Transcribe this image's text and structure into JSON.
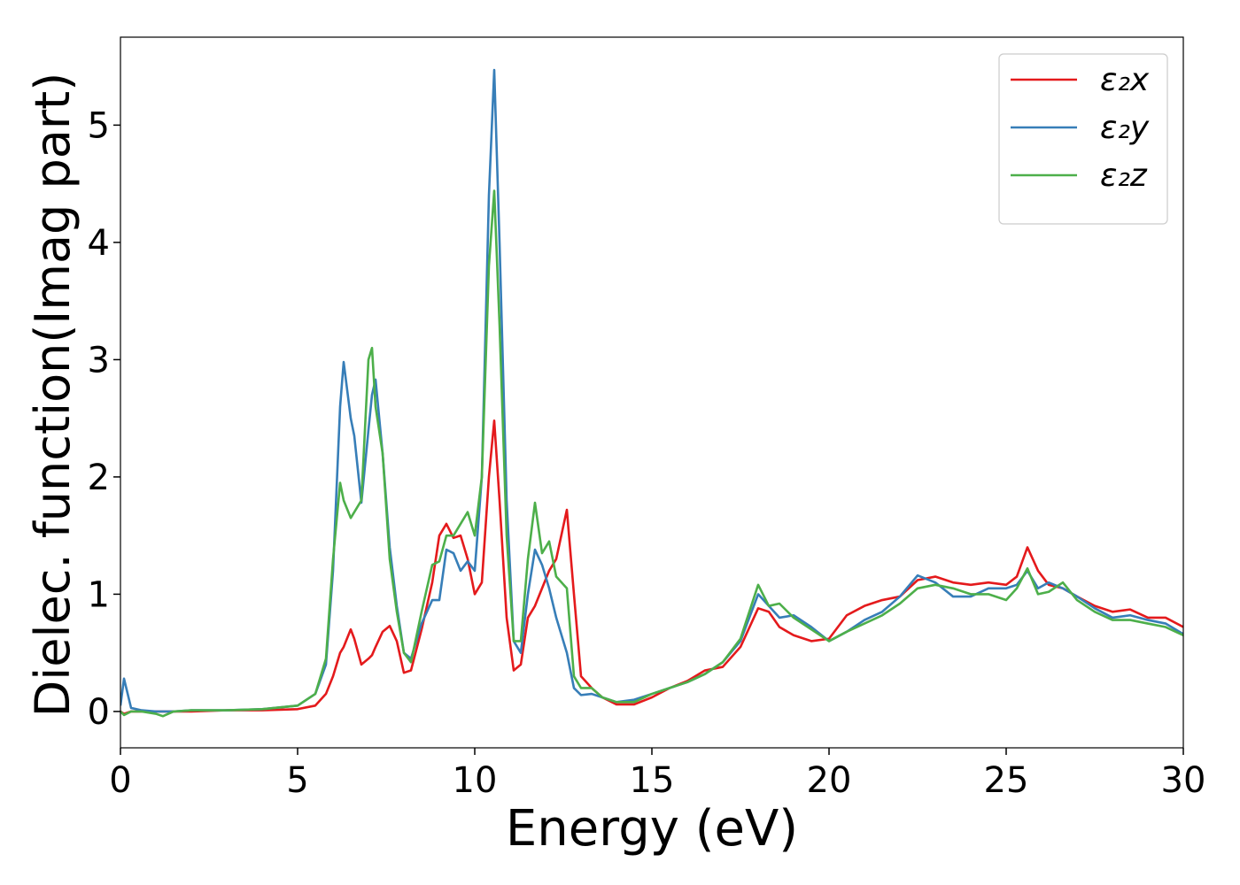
{
  "chart_data": {
    "type": "line",
    "xlabel": "Energy (eV)",
    "ylabel": "Dielec. function(Imag part)",
    "xlim": [
      0,
      30
    ],
    "xticks": [
      0,
      5,
      10,
      15,
      20,
      25,
      30
    ],
    "ylim": [
      -0.31,
      5.75
    ],
    "yticks": [
      0,
      1,
      2,
      3,
      4,
      5
    ],
    "legend": "upper right",
    "x": [
      0,
      0.1,
      0.3,
      0.6,
      1,
      1.2,
      1.5,
      2,
      3,
      4,
      5,
      5.5,
      5.8,
      6,
      6.2,
      6.3,
      6.5,
      6.6,
      6.8,
      7,
      7.1,
      7.2,
      7.4,
      7.6,
      7.8,
      8,
      8.2,
      8.5,
      8.8,
      9,
      9.2,
      9.4,
      9.6,
      9.8,
      10,
      10.2,
      10.4,
      10.55,
      10.7,
      10.9,
      11.1,
      11.3,
      11.5,
      11.7,
      11.9,
      12.1,
      12.3,
      12.6,
      12.8,
      13,
      13.3,
      13.6,
      14,
      14.5,
      15,
      15.5,
      16,
      16.5,
      17,
      17.5,
      18,
      18.3,
      18.6,
      19,
      19.5,
      20,
      20.5,
      21,
      21.5,
      22,
      22.5,
      23,
      23.5,
      24,
      24.5,
      25,
      25.3,
      25.6,
      25.9,
      26.2,
      26.6,
      27,
      27.5,
      28,
      28.5,
      29,
      29.5,
      30
    ],
    "series": [
      {
        "name": "ε₂x",
        "color": "#e41a1c",
        "values": [
          0,
          -0.02,
          0,
          0,
          0,
          0,
          0,
          0,
          0.01,
          0.01,
          0.02,
          0.05,
          0.15,
          0.3,
          0.5,
          0.55,
          0.7,
          0.62,
          0.4,
          0.45,
          0.48,
          0.55,
          0.68,
          0.73,
          0.6,
          0.33,
          0.35,
          0.7,
          1.1,
          1.5,
          1.6,
          1.48,
          1.5,
          1.3,
          1.0,
          1.1,
          2.0,
          2.48,
          1.8,
          0.8,
          0.35,
          0.4,
          0.8,
          0.9,
          1.05,
          1.2,
          1.3,
          1.72,
          1.0,
          0.3,
          0.2,
          0.12,
          0.06,
          0.06,
          0.12,
          0.2,
          0.26,
          0.35,
          0.38,
          0.55,
          0.88,
          0.85,
          0.72,
          0.65,
          0.6,
          0.62,
          0.82,
          0.9,
          0.95,
          0.98,
          1.12,
          1.15,
          1.1,
          1.08,
          1.1,
          1.08,
          1.15,
          1.4,
          1.2,
          1.08,
          1.05,
          0.98,
          0.9,
          0.85,
          0.87,
          0.8,
          0.8,
          0.72
        ]
      },
      {
        "name": "ε₂y",
        "color": "#377eb8",
        "values": [
          0.05,
          0.28,
          0.03,
          0.01,
          0,
          0,
          0,
          0.01,
          0.01,
          0.02,
          0.05,
          0.15,
          0.4,
          1.2,
          2.6,
          2.98,
          2.5,
          2.35,
          1.78,
          2.4,
          2.7,
          2.83,
          2.2,
          1.4,
          0.9,
          0.5,
          0.45,
          0.75,
          0.95,
          0.95,
          1.38,
          1.35,
          1.2,
          1.28,
          1.2,
          2.0,
          4.4,
          5.47,
          4.0,
          1.8,
          0.6,
          0.5,
          1.0,
          1.38,
          1.25,
          1.05,
          0.8,
          0.5,
          0.2,
          0.14,
          0.15,
          0.12,
          0.08,
          0.1,
          0.15,
          0.2,
          0.25,
          0.32,
          0.42,
          0.6,
          1.0,
          0.9,
          0.8,
          0.82,
          0.72,
          0.6,
          0.68,
          0.78,
          0.85,
          0.98,
          1.16,
          1.1,
          0.98,
          0.98,
          1.05,
          1.05,
          1.08,
          1.2,
          1.05,
          1.1,
          1.05,
          0.98,
          0.88,
          0.8,
          0.82,
          0.78,
          0.75,
          0.66
        ]
      },
      {
        "name": "ε₂z",
        "color": "#4daf4a",
        "values": [
          0,
          -0.03,
          0,
          0,
          -0.02,
          -0.04,
          0,
          0.01,
          0.01,
          0.02,
          0.05,
          0.15,
          0.45,
          1.3,
          1.95,
          1.8,
          1.65,
          1.7,
          1.8,
          3.0,
          3.1,
          2.6,
          2.2,
          1.3,
          0.85,
          0.5,
          0.42,
          0.85,
          1.25,
          1.28,
          1.5,
          1.5,
          1.6,
          1.7,
          1.5,
          2.0,
          3.8,
          4.44,
          3.3,
          1.5,
          0.6,
          0.6,
          1.3,
          1.78,
          1.35,
          1.45,
          1.15,
          1.05,
          0.3,
          0.2,
          0.2,
          0.12,
          0.08,
          0.08,
          0.15,
          0.2,
          0.25,
          0.32,
          0.42,
          0.62,
          1.08,
          0.9,
          0.92,
          0.8,
          0.7,
          0.6,
          0.68,
          0.75,
          0.82,
          0.92,
          1.05,
          1.08,
          1.05,
          1.0,
          1.0,
          0.95,
          1.05,
          1.22,
          1.0,
          1.02,
          1.1,
          0.95,
          0.85,
          0.78,
          0.78,
          0.75,
          0.72,
          0.65
        ]
      }
    ]
  }
}
